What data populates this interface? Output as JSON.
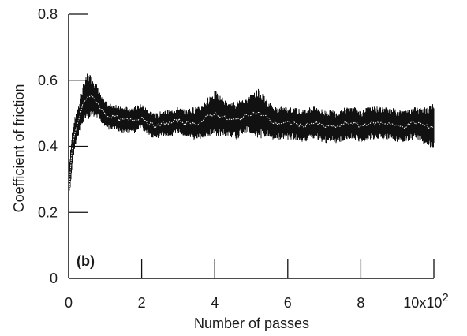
{
  "chart_data": {
    "type": "line",
    "panel_label": "(b)",
    "xlabel": "Number of passes",
    "ylabel": "Coefficient of friction",
    "xlim": [
      0,
      10
    ],
    "ylim": [
      0,
      0.8
    ],
    "x_ticks": [
      "0",
      "2",
      "4",
      "6",
      "8",
      "10x10"
    ],
    "x_tick_exponent": "2",
    "y_ticks": [
      "0",
      "0.2",
      "0.4",
      "0.6",
      "0.8"
    ],
    "grid": false,
    "line_color": "#111111",
    "mean_color": "#ffffff",
    "series": [
      {
        "x": [
          0,
          0.02,
          0.05,
          0.1,
          0.15,
          0.2,
          0.3,
          0.4,
          0.5,
          0.6,
          0.7,
          0.8,
          0.9,
          1.0,
          1.1,
          1.2,
          1.3,
          1.4,
          1.5,
          1.6,
          1.7,
          1.8,
          1.9,
          2.0,
          2.2,
          2.4,
          2.6,
          2.8,
          3.0,
          3.2,
          3.4,
          3.6,
          3.8,
          4.0,
          4.2,
          4.4,
          4.6,
          4.8,
          5.0,
          5.2,
          5.4,
          5.6,
          5.8,
          6.0,
          6.2,
          6.4,
          6.6,
          6.8,
          7.0,
          7.2,
          7.4,
          7.6,
          7.8,
          8.0,
          8.2,
          8.4,
          8.6,
          8.8,
          9.0,
          9.2,
          9.4,
          9.6,
          9.8,
          10.0
        ],
        "mean": [
          0.2,
          0.29,
          0.33,
          0.4,
          0.43,
          0.45,
          0.49,
          0.53,
          0.55,
          0.55,
          0.545,
          0.53,
          0.51,
          0.5,
          0.49,
          0.49,
          0.49,
          0.48,
          0.48,
          0.48,
          0.48,
          0.48,
          0.485,
          0.49,
          0.47,
          0.46,
          0.47,
          0.47,
          0.48,
          0.47,
          0.47,
          0.47,
          0.49,
          0.5,
          0.49,
          0.48,
          0.48,
          0.49,
          0.5,
          0.5,
          0.49,
          0.47,
          0.47,
          0.47,
          0.47,
          0.46,
          0.47,
          0.47,
          0.46,
          0.46,
          0.46,
          0.47,
          0.47,
          0.46,
          0.47,
          0.47,
          0.47,
          0.47,
          0.46,
          0.46,
          0.47,
          0.47,
          0.46,
          0.46
        ],
        "amplitude": [
          0.02,
          0.04,
          0.06,
          0.06,
          0.05,
          0.05,
          0.05,
          0.06,
          0.07,
          0.07,
          0.06,
          0.05,
          0.04,
          0.04,
          0.04,
          0.04,
          0.04,
          0.04,
          0.04,
          0.04,
          0.04,
          0.04,
          0.04,
          0.04,
          0.04,
          0.04,
          0.04,
          0.04,
          0.04,
          0.04,
          0.05,
          0.05,
          0.06,
          0.07,
          0.06,
          0.05,
          0.06,
          0.05,
          0.06,
          0.08,
          0.06,
          0.05,
          0.05,
          0.05,
          0.05,
          0.05,
          0.05,
          0.05,
          0.05,
          0.05,
          0.05,
          0.05,
          0.05,
          0.05,
          0.05,
          0.05,
          0.05,
          0.05,
          0.05,
          0.05,
          0.05,
          0.05,
          0.06,
          0.07
        ]
      }
    ]
  }
}
